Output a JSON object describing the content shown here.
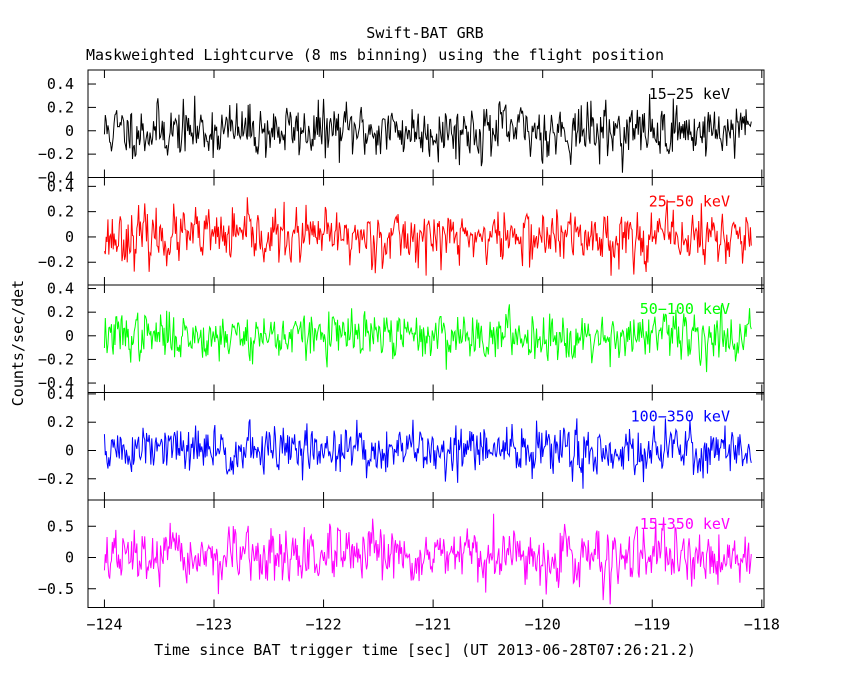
{
  "chart_data": {
    "type": "line",
    "title": "Swift-BAT GRB",
    "subtitle": "Maskweighted Lightcurve (8 ms binning) using the flight position",
    "xlabel": "Time since BAT trigger time [sec] (UT 2013-06-28T07:26:21.2)",
    "ylabel": "Counts/sec/det",
    "xlim": [
      -124.15,
      -117.98
    ],
    "x_ticks": [
      {
        "value": -124,
        "label": "−124"
      },
      {
        "value": -123,
        "label": "−123"
      },
      {
        "value": -122,
        "label": "−122"
      },
      {
        "value": -121,
        "label": "−121"
      },
      {
        "value": -120,
        "label": "−120"
      },
      {
        "value": -119,
        "label": "−119"
      },
      {
        "value": -118,
        "label": "−118"
      }
    ],
    "x_range": [
      -124,
      -118.1
    ],
    "bin_width": 0.008,
    "grid": false,
    "panels": [
      {
        "name": "15−25 keV",
        "color": "#000000",
        "ylim": [
          -0.4,
          0.52
        ],
        "yticks": [
          {
            "value": 0.4,
            "label": "0.4"
          },
          {
            "value": 0.2,
            "label": "0.2"
          },
          {
            "value": 0,
            "label": "0"
          },
          {
            "value": -0.2,
            "label": "−0.2"
          },
          {
            "value": -0.4,
            "label": "−0.4"
          }
        ],
        "noise_sigma": 0.13,
        "seed": 11
      },
      {
        "name": "25−50 keV",
        "color": "#ff0000",
        "ylim": [
          -0.38,
          0.47
        ],
        "yticks": [
          {
            "value": 0.4,
            "label": "0.4"
          },
          {
            "value": 0.2,
            "label": "0.2"
          },
          {
            "value": 0,
            "label": "0"
          },
          {
            "value": -0.2,
            "label": "−0.2"
          }
        ],
        "noise_sigma": 0.12,
        "seed": 23
      },
      {
        "name": "50−100 keV",
        "color": "#00ff00",
        "ylim": [
          -0.48,
          0.43
        ],
        "yticks": [
          {
            "value": 0.4,
            "label": "0.4"
          },
          {
            "value": 0.2,
            "label": "0.2"
          },
          {
            "value": 0,
            "label": "0"
          },
          {
            "value": -0.2,
            "label": "−0.2"
          },
          {
            "value": -0.4,
            "label": "−0.4"
          }
        ],
        "noise_sigma": 0.11,
        "seed": 37
      },
      {
        "name": "100−350 keV",
        "color": "#0000ff",
        "ylim": [
          -0.35,
          0.41
        ],
        "yticks": [
          {
            "value": 0.4,
            "label": "0.4"
          },
          {
            "value": 0.2,
            "label": "0.2"
          },
          {
            "value": 0,
            "label": "0"
          },
          {
            "value": -0.2,
            "label": "−0.2"
          }
        ],
        "noise_sigma": 0.1,
        "seed": 51
      },
      {
        "name": "15−350 keV",
        "color": "#ff00ff",
        "ylim": [
          -0.8,
          0.92
        ],
        "yticks": [
          {
            "value": 0.5,
            "label": "0.5"
          },
          {
            "value": 0,
            "label": "0"
          },
          {
            "value": -0.5,
            "label": "−0.5"
          }
        ],
        "noise_sigma": 0.24,
        "seed": 67
      }
    ]
  }
}
